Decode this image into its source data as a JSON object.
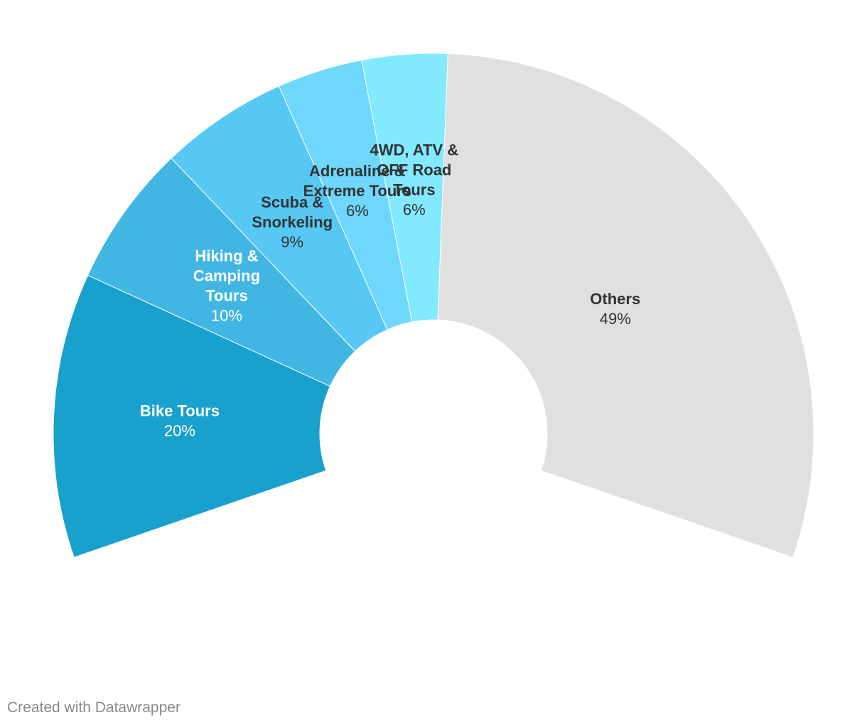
{
  "chart_data": {
    "type": "pie",
    "variant": "half-donut",
    "categories": [
      "Bike Tours",
      "Hiking & Camping Tours",
      "Scuba & Snorkeling",
      "Adrenaline & Extreme Tours",
      "4WD, ATV & OFF Road Tours",
      "Others"
    ],
    "values": [
      20,
      10,
      9,
      6,
      6,
      49
    ],
    "value_labels": [
      "20%",
      "10%",
      "9%",
      "6%",
      "6%",
      "49%"
    ],
    "label_lines": [
      [
        "Bike Tours"
      ],
      [
        "Hiking &",
        "Camping",
        "Tours"
      ],
      [
        "Scuba &",
        "Snorkeling"
      ],
      [
        "Adrenaline &",
        "Extreme Tours"
      ],
      [
        "4WD, ATV &",
        "OFF Road",
        "Tours"
      ],
      [
        "Others"
      ]
    ],
    "colors": [
      "#18a1cd",
      "#41b6e3",
      "#57c7f4",
      "#6ed7fb",
      "#82e9ff",
      "#e0e0e0"
    ],
    "label_colors": [
      "#ffffff",
      "#ffffff",
      "#333333",
      "#333333",
      "#333333",
      "#333333"
    ],
    "title": "",
    "legend": "none"
  },
  "footer": {
    "credit": "Created with Datawrapper"
  }
}
